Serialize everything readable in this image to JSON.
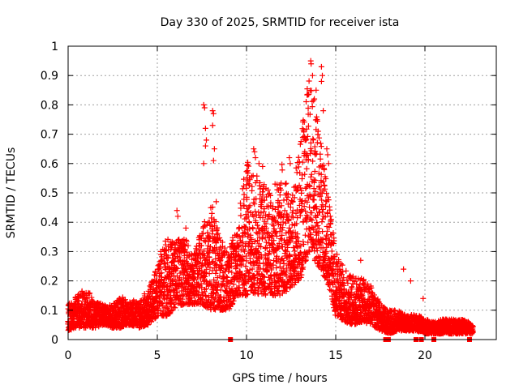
{
  "chart_data": {
    "type": "scatter",
    "title": "Day 330 of 2025, SRMTID for receiver ista",
    "xlabel": "GPS time / hours",
    "ylabel": "SRMTID / TECUs",
    "xlim": [
      0,
      24
    ],
    "ylim": [
      0,
      1
    ],
    "xticks": [
      0,
      5,
      10,
      15,
      20
    ],
    "yticks": [
      0,
      0.1,
      0.2,
      0.3,
      0.4,
      0.5,
      0.6,
      0.7,
      0.8,
      0.9,
      1
    ],
    "xtick_labels": [
      "0",
      "5",
      "10",
      "15",
      "20"
    ],
    "ytick_labels": [
      "0",
      "0.1",
      "0.2",
      "0.3",
      "0.4",
      "0.5",
      "0.6",
      "0.7",
      "0.8",
      "0.9",
      "1"
    ],
    "grid": true,
    "marker": "+",
    "color": "#ff0000",
    "envelope": [
      [
        0.0,
        0.03,
        0.12
      ],
      [
        0.5,
        0.04,
        0.15
      ],
      [
        1.0,
        0.04,
        0.18
      ],
      [
        1.5,
        0.04,
        0.13
      ],
      [
        2.0,
        0.05,
        0.12
      ],
      [
        2.5,
        0.04,
        0.12
      ],
      [
        3.0,
        0.04,
        0.15
      ],
      [
        3.5,
        0.05,
        0.13
      ],
      [
        4.0,
        0.04,
        0.14
      ],
      [
        4.5,
        0.05,
        0.17
      ],
      [
        5.0,
        0.08,
        0.25
      ],
      [
        5.5,
        0.08,
        0.35
      ],
      [
        6.0,
        0.1,
        0.33
      ],
      [
        6.5,
        0.12,
        0.37
      ],
      [
        7.0,
        0.12,
        0.28
      ],
      [
        7.5,
        0.12,
        0.38
      ],
      [
        8.0,
        0.1,
        0.48
      ],
      [
        8.5,
        0.1,
        0.35
      ],
      [
        9.0,
        0.1,
        0.3
      ],
      [
        9.5,
        0.15,
        0.4
      ],
      [
        10.0,
        0.15,
        0.62
      ],
      [
        10.5,
        0.15,
        0.57
      ],
      [
        11.0,
        0.15,
        0.53
      ],
      [
        11.5,
        0.15,
        0.48
      ],
      [
        12.0,
        0.15,
        0.6
      ],
      [
        12.5,
        0.18,
        0.47
      ],
      [
        13.0,
        0.2,
        0.68
      ],
      [
        13.5,
        0.3,
        0.9
      ],
      [
        14.0,
        0.25,
        0.75
      ],
      [
        14.5,
        0.2,
        0.55
      ],
      [
        15.0,
        0.08,
        0.3
      ],
      [
        15.5,
        0.06,
        0.24
      ],
      [
        16.0,
        0.05,
        0.22
      ],
      [
        16.5,
        0.06,
        0.21
      ],
      [
        17.0,
        0.05,
        0.18
      ],
      [
        17.5,
        0.03,
        0.12
      ],
      [
        18.0,
        0.02,
        0.1
      ],
      [
        18.5,
        0.03,
        0.1
      ],
      [
        19.0,
        0.03,
        0.08
      ],
      [
        19.5,
        0.03,
        0.09
      ],
      [
        20.0,
        0.02,
        0.07
      ],
      [
        20.5,
        0.02,
        0.06
      ],
      [
        21.0,
        0.02,
        0.07
      ],
      [
        21.5,
        0.02,
        0.07
      ],
      [
        22.0,
        0.02,
        0.07
      ],
      [
        22.5,
        0.02,
        0.06
      ],
      [
        22.7,
        0.02,
        0.05
      ]
    ],
    "spikes": [
      [
        7.6,
        0.8
      ],
      [
        7.65,
        0.79
      ],
      [
        7.7,
        0.72
      ],
      [
        7.75,
        0.68
      ],
      [
        7.6,
        0.6
      ],
      [
        7.7,
        0.66
      ],
      [
        8.1,
        0.78
      ],
      [
        8.15,
        0.77
      ],
      [
        8.1,
        0.73
      ],
      [
        8.2,
        0.65
      ],
      [
        8.15,
        0.61
      ],
      [
        8.3,
        0.47
      ],
      [
        10.4,
        0.65
      ],
      [
        10.45,
        0.64
      ],
      [
        10.5,
        0.62
      ],
      [
        10.7,
        0.6
      ],
      [
        10.9,
        0.59
      ],
      [
        11.6,
        0.53
      ],
      [
        12.4,
        0.62
      ],
      [
        12.45,
        0.6
      ],
      [
        13.6,
        0.95
      ],
      [
        13.62,
        0.94
      ],
      [
        13.7,
        0.9
      ],
      [
        14.2,
        0.93
      ],
      [
        14.25,
        0.9
      ],
      [
        14.2,
        0.88
      ],
      [
        13.9,
        0.85
      ],
      [
        13.8,
        0.82
      ],
      [
        14.3,
        0.78
      ],
      [
        13.95,
        0.75
      ],
      [
        14.5,
        0.65
      ],
      [
        14.55,
        0.63
      ],
      [
        14.6,
        0.6
      ],
      [
        6.1,
        0.44
      ],
      [
        6.15,
        0.42
      ],
      [
        6.6,
        0.38
      ],
      [
        5.2,
        0.3
      ],
      [
        9.6,
        0.35
      ],
      [
        10.1,
        0.42
      ],
      [
        16.4,
        0.27
      ],
      [
        18.8,
        0.24
      ],
      [
        19.2,
        0.2
      ],
      [
        19.9,
        0.14
      ]
    ],
    "axis_markers_x": [
      9.1,
      17.8,
      17.95,
      19.5,
      19.8,
      20.5,
      22.5
    ]
  }
}
